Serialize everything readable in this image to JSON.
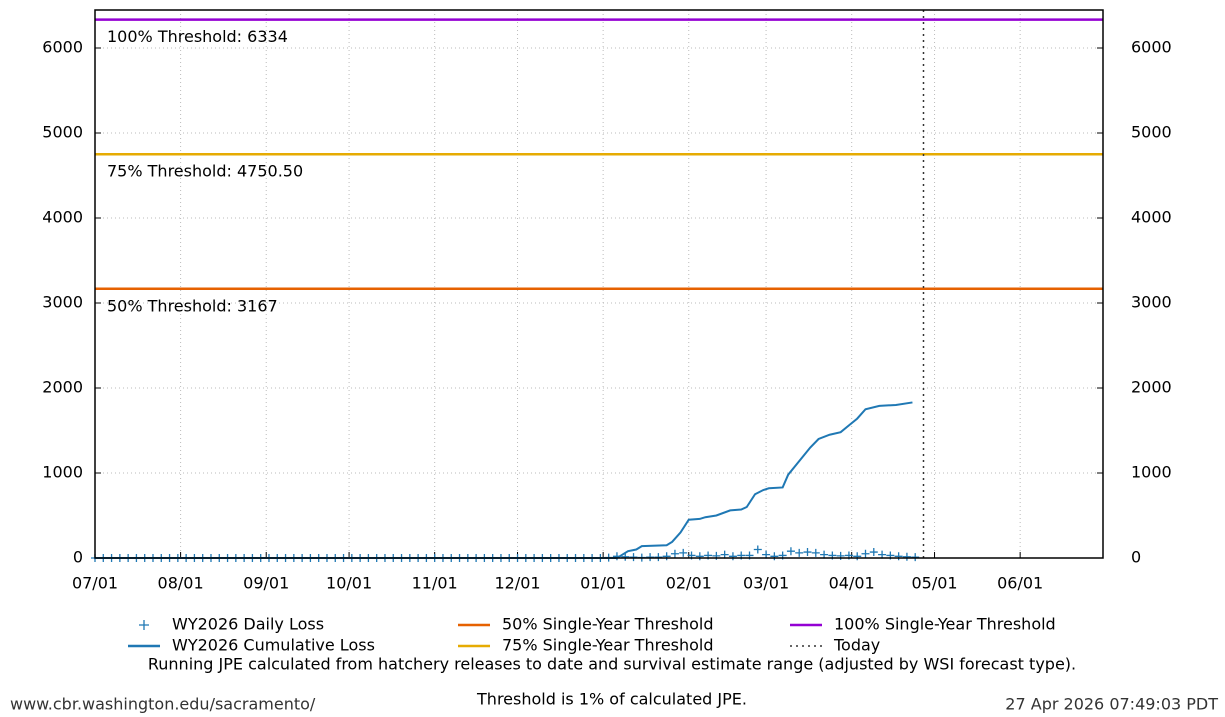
{
  "chart_data": {
    "type": "line",
    "xlim": [
      0,
      365
    ],
    "xticks": [
      {
        "value": 0,
        "label": "07/01"
      },
      {
        "value": 31,
        "label": "08/01"
      },
      {
        "value": 62,
        "label": "09/01"
      },
      {
        "value": 92,
        "label": "10/01"
      },
      {
        "value": 123,
        "label": "11/01"
      },
      {
        "value": 153,
        "label": "12/01"
      },
      {
        "value": 184,
        "label": "01/01"
      },
      {
        "value": 215,
        "label": "02/01"
      },
      {
        "value": 243,
        "label": "03/01"
      },
      {
        "value": 274,
        "label": "04/01"
      },
      {
        "value": 304,
        "label": "05/01"
      },
      {
        "value": 335,
        "label": "06/01"
      }
    ],
    "ylim": [
      0,
      6447
    ],
    "yticks": [
      0,
      1000,
      2000,
      3000,
      4000,
      5000,
      6000
    ],
    "grid": true,
    "series": [
      {
        "name": "WY2026 Daily Loss",
        "color": "#1f78b4",
        "marker": "+",
        "x": [
          0,
          3,
          6,
          9,
          12,
          15,
          18,
          21,
          24,
          27,
          30,
          33,
          36,
          39,
          42,
          45,
          48,
          51,
          54,
          57,
          60,
          63,
          66,
          69,
          72,
          75,
          78,
          81,
          84,
          87,
          90,
          93,
          96,
          99,
          102,
          105,
          108,
          111,
          114,
          117,
          120,
          123,
          126,
          129,
          132,
          135,
          138,
          141,
          144,
          147,
          150,
          153,
          156,
          159,
          162,
          165,
          168,
          171,
          174,
          177,
          180,
          183,
          186,
          189,
          192,
          195,
          198,
          201,
          204,
          207,
          210,
          213,
          216,
          219,
          222,
          225,
          228,
          231,
          234,
          237,
          240,
          243,
          246,
          249,
          252,
          255,
          258,
          261,
          264,
          267,
          270,
          273,
          276,
          279,
          282,
          285,
          288,
          291,
          294,
          297
        ],
        "values": [
          0,
          0,
          0,
          0,
          0,
          0,
          0,
          0,
          0,
          0,
          0,
          0,
          0,
          0,
          0,
          0,
          0,
          0,
          0,
          0,
          0,
          0,
          0,
          0,
          0,
          0,
          0,
          0,
          0,
          0,
          0,
          0,
          0,
          0,
          0,
          0,
          0,
          0,
          0,
          0,
          0,
          0,
          0,
          0,
          0,
          0,
          0,
          0,
          0,
          0,
          0,
          0,
          0,
          0,
          0,
          0,
          0,
          0,
          0,
          0,
          0,
          0,
          5,
          20,
          15,
          10,
          5,
          10,
          10,
          20,
          50,
          60,
          30,
          20,
          30,
          25,
          40,
          20,
          30,
          30,
          100,
          40,
          20,
          30,
          80,
          60,
          70,
          60,
          40,
          30,
          25,
          30,
          20,
          50,
          70,
          40,
          30,
          20,
          15,
          10
        ]
      },
      {
        "name": "WY2026 Cumulative Loss",
        "color": "#1f78b4",
        "x": [
          0,
          189,
          190,
          193,
          196,
          198,
          207,
          209,
          212,
          215,
          219,
          221,
          225,
          230,
          234,
          236,
          239,
          242,
          244,
          249,
          251,
          254,
          259,
          262,
          266,
          270,
          273,
          276,
          279,
          284,
          290,
          296
        ],
        "values": [
          0,
          0,
          20,
          80,
          100,
          140,
          150,
          190,
          300,
          450,
          460,
          480,
          500,
          560,
          570,
          600,
          750,
          800,
          820,
          830,
          980,
          1100,
          1300,
          1400,
          1450,
          1480,
          1560,
          1640,
          1750,
          1790,
          1800,
          1830
        ]
      }
    ],
    "thresholds": [
      {
        "name": "50% Single-Year Threshold",
        "label": "50% Threshold: 3167",
        "value": 3167,
        "color": "#e66101"
      },
      {
        "name": "75% Single-Year Threshold",
        "label": "75% Threshold: 4750.50",
        "value": 4750.5,
        "color": "#e6ab02"
      },
      {
        "name": "100% Single-Year Threshold",
        "label": "100% Threshold: 6334",
        "value": 6334,
        "color": "#9400d3"
      }
    ],
    "today": {
      "name": "Today",
      "x": 300
    },
    "caption": [
      "Running JPE calculated from hatchery releases to date and survival estimate range (adjusted by WSI forecast type).",
      "Threshold is 1% of calculated JPE."
    ],
    "source": "www.cbr.washington.edu/sacramento/",
    "timestamp": "27 Apr 2026 07:49:03 PDT"
  }
}
